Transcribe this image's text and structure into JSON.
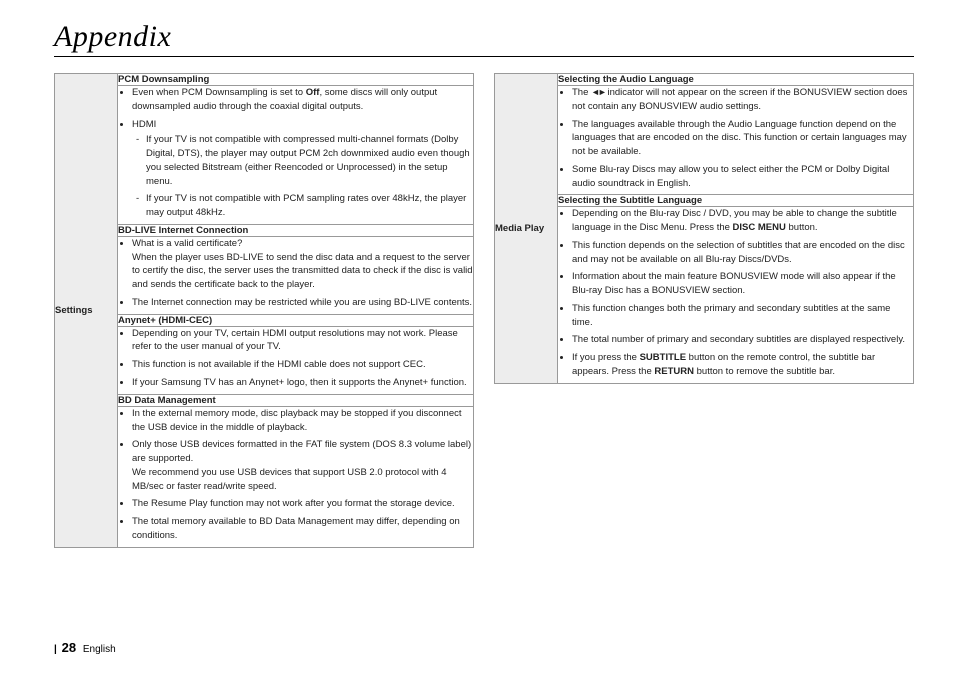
{
  "page": {
    "title": "Appendix",
    "pageNumber": "28",
    "language": "English"
  },
  "bold": {
    "off": "Off",
    "discMenu": "DISC MENU",
    "subtitle": "SUBTITLE",
    "return": "RETURN"
  },
  "left": {
    "side": "Settings",
    "s1": {
      "hdr": "PCM Downsampling",
      "b1a": "Even when PCM Downsampling is set to ",
      "b1b": ", some discs will only output downsampled audio through the coaxial digital outputs.",
      "b2": "HDMI",
      "d1": "If your TV is not compatible with compressed multi-channel formats (Dolby Digital, DTS), the player may output PCM 2ch downmixed audio even though you selected Bitstream (either Reencoded or Unprocessed) in the setup menu.",
      "d2": "If your TV is not compatible with PCM sampling rates over 48kHz, the player may output 48kHz."
    },
    "s2": {
      "hdr": "BD-LIVE Internet Connection",
      "b1": "What is a valid certificate?",
      "b1x": "When the player uses BD-LIVE to send the disc data and a request to the server to certify the disc, the server uses the transmitted data to check if the disc is valid and sends the certificate back to the player.",
      "b2": "The Internet connection may be restricted while you are using BD-LIVE contents."
    },
    "s3": {
      "hdr": "Anynet+ (HDMI-CEC)",
      "b1": "Depending on your TV, certain HDMI output resolutions may not work. Please refer to the user manual of your TV.",
      "b2": "This function is not available if the HDMI cable does not support CEC.",
      "b3": "If your Samsung TV has an Anynet+ logo, then it supports the Anynet+ function."
    },
    "s4": {
      "hdr": "BD Data Management",
      "b1": "In the external memory mode, disc playback may be stopped if you disconnect the USB device in the middle of playback.",
      "b2": "Only those USB devices formatted in the FAT file system (DOS 8.3 volume label) are supported.",
      "b2x": "We recommend you use USB devices that support USB 2.0 protocol with 4 MB/sec or faster read/write speed.",
      "b3": "The Resume Play function may not work after you format the storage device.",
      "b4": "The total memory available to BD Data Management may differ, depending on conditions."
    }
  },
  "right": {
    "side": "Media Play",
    "s1": {
      "hdr": "Selecting the Audio Language",
      "b1a": "The ",
      "b1b": " indicator will not appear on the screen if the BONUSVIEW section does not contain any BONUSVIEW audio settings.",
      "b2": "The languages available through the Audio Language function depend on the languages that are encoded on the disc. This function or certain languages may not be available.",
      "b3": "Some Blu-ray Discs may allow you to select either the PCM or Dolby Digital audio soundtrack in English."
    },
    "s2": {
      "hdr": "Selecting the Subtitle Language",
      "b1a": "Depending on the Blu-ray Disc / DVD, you may be able to change the subtitle language in the Disc Menu. Press the ",
      "b1b": " button.",
      "b2": "This function depends on the selection of subtitles that are encoded on the disc and may not be available on all Blu-ray Discs/DVDs.",
      "b3": "Information about the main feature BONUSVIEW mode will also appear if the Blu-ray Disc has a BONUSVIEW section.",
      "b4": "This function changes both the primary and secondary subtitles at the same time.",
      "b5": "The total number of primary and secondary subtitles are displayed respectively.",
      "b6a": "If you press the ",
      "b6b": " button on the remote control, the subtitle bar appears. Press the ",
      "b6c": " button to remove the subtitle bar."
    }
  }
}
